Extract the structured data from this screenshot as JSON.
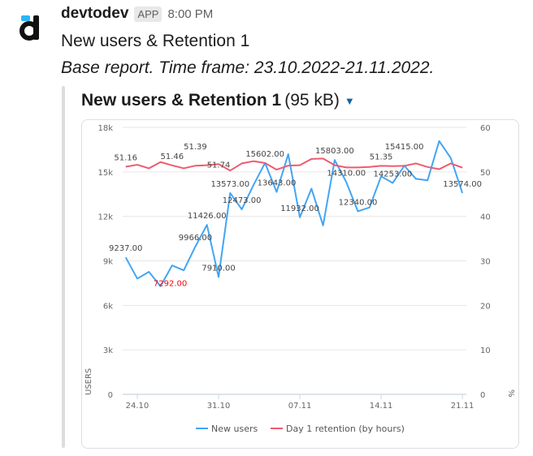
{
  "message": {
    "app_name": "devtodev",
    "badge": "APP",
    "time": "8:00 PM",
    "title": "New users & Retention 1",
    "subtitle": "Base report. Time frame: 23.10.2022-21.11.2022.",
    "attachment_name": "New users & Retention 1",
    "attachment_size": "(95 kB)"
  },
  "colors": {
    "new_users": "#42a5f5",
    "retention": "#ef5a6f",
    "min_label": "#ff0000"
  },
  "chart_data": {
    "type": "line",
    "x": [
      "23.10",
      "24.10",
      "25.10",
      "26.10",
      "27.10",
      "28.10",
      "29.10",
      "30.10",
      "31.10",
      "01.11",
      "02.11",
      "03.11",
      "04.11",
      "05.11",
      "06.11",
      "07.11",
      "08.11",
      "09.11",
      "10.11",
      "11.11",
      "12.11",
      "13.11",
      "14.11",
      "15.11",
      "16.11",
      "17.11",
      "18.11",
      "19.11",
      "20.11",
      "21.11"
    ],
    "xticks": [
      "24.10",
      "31.10",
      "07.11",
      "14.11",
      "21.11"
    ],
    "series": [
      {
        "name": "New users",
        "axis": "left",
        "values": [
          9237,
          7800,
          8260,
          7292,
          8690,
          8360,
          9966,
          11426,
          7910,
          13573,
          12473,
          14100,
          15602,
          13643,
          16190,
          11932,
          13870,
          11390,
          15803,
          14310,
          12340,
          12600,
          14700,
          14253,
          15415,
          14530,
          14430,
          17080,
          15930,
          13574
        ]
      },
      {
        "name": "Day 1 retention (by hours)",
        "axis": "right",
        "values": [
          51.16,
          51.6,
          50.8,
          52.2,
          51.46,
          50.8,
          51.39,
          51.5,
          51.74,
          50.3,
          51.9,
          52.4,
          52.0,
          50.5,
          51.4,
          51.5,
          52.9,
          53.0,
          51.5,
          51.0,
          51.0,
          51.1,
          51.35,
          51.3,
          51.35,
          51.9,
          51.1,
          50.6,
          51.9,
          50.95
        ]
      }
    ],
    "data_labels": [
      {
        "series": 0,
        "index": 0,
        "text": "9237.00"
      },
      {
        "series": 0,
        "index": 3,
        "text": "7292.00",
        "highlight": true
      },
      {
        "series": 0,
        "index": 6,
        "text": "9966.00"
      },
      {
        "series": 0,
        "index": 7,
        "text": "11426.00"
      },
      {
        "series": 0,
        "index": 8,
        "text": "7910.00"
      },
      {
        "series": 0,
        "index": 9,
        "text": "13573.00"
      },
      {
        "series": 0,
        "index": 10,
        "text": "12473.00"
      },
      {
        "series": 0,
        "index": 12,
        "text": "15602.00"
      },
      {
        "series": 0,
        "index": 13,
        "text": "13643.00"
      },
      {
        "series": 0,
        "index": 15,
        "text": "11932.00"
      },
      {
        "series": 0,
        "index": 18,
        "text": "15803.00"
      },
      {
        "series": 0,
        "index": 19,
        "text": "14310.00"
      },
      {
        "series": 0,
        "index": 20,
        "text": "12340.00"
      },
      {
        "series": 0,
        "index": 23,
        "text": "14253.00"
      },
      {
        "series": 0,
        "index": 24,
        "text": "15415.00"
      },
      {
        "series": 0,
        "index": 29,
        "text": "13574.00"
      },
      {
        "series": 1,
        "index": 0,
        "text": "51.16"
      },
      {
        "series": 1,
        "index": 4,
        "text": "51.46"
      },
      {
        "series": 1,
        "index": 6,
        "text": "51.39"
      },
      {
        "series": 1,
        "index": 8,
        "text": "51.74"
      },
      {
        "series": 1,
        "index": 22,
        "text": "51.35"
      }
    ],
    "ylabel": "USERS",
    "y2label": "%",
    "ylim": [
      0,
      18000
    ],
    "y2lim": [
      0,
      60
    ],
    "yticks": [
      "0",
      "3k",
      "6k",
      "9k",
      "12k",
      "15k",
      "18k"
    ],
    "y2ticks": [
      "0",
      "10",
      "20",
      "30",
      "40",
      "50",
      "60"
    ],
    "grid": true,
    "legend": "bottom-center"
  }
}
